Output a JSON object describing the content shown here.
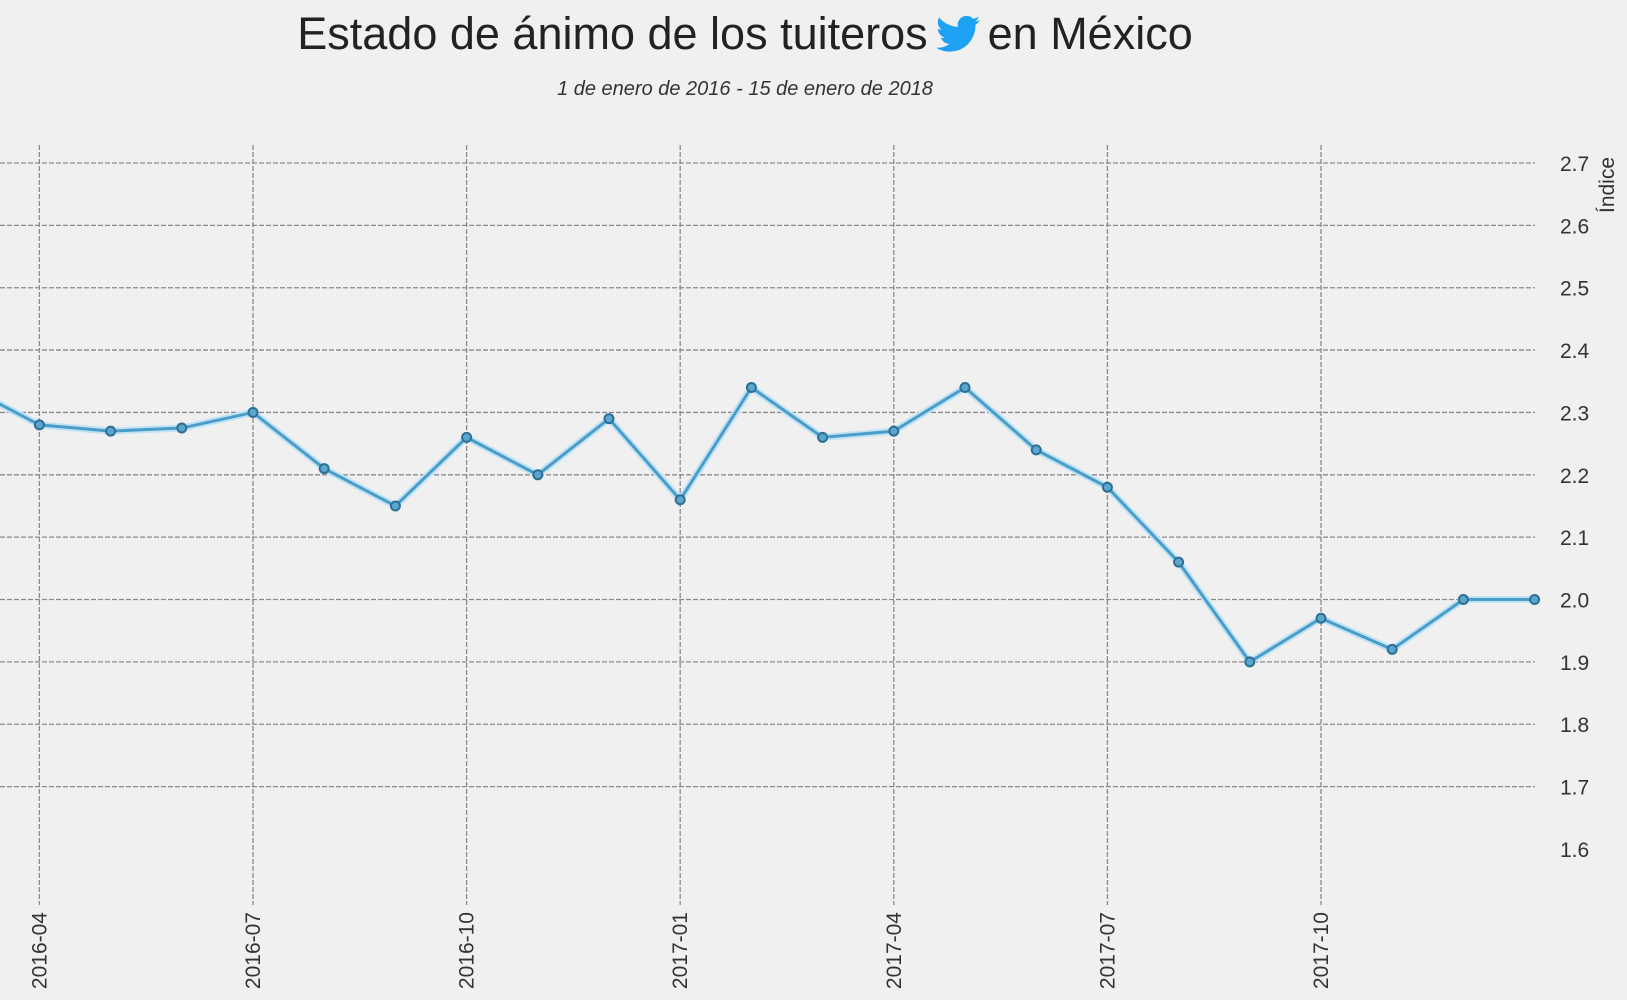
{
  "chart_data": {
    "type": "line",
    "title_part1": "Estado de ánimo de los tuiteros",
    "title_icon": "twitter-bird-icon",
    "title_part2": "en México",
    "subtitle": "1 de enero de 2016 - 15 de enero de 2018",
    "ylabel": "Índice",
    "xlabel": "",
    "ylim": [
      1.6,
      2.7
    ],
    "yticks": [
      "1.6",
      "1.7",
      "1.8",
      "1.9",
      "2.0",
      "2.1",
      "2.2",
      "2.3",
      "2.4",
      "2.5",
      "2.6",
      "2.7"
    ],
    "xticks": [
      "2016-04",
      "2016-07",
      "2016-10",
      "2017-01",
      "2017-04",
      "2017-07",
      "2017-10"
    ],
    "grid": true,
    "colors": {
      "line": "#4a9cc9",
      "marker": "#2f6f94",
      "grid": "#8a8a8a",
      "twitter": "#1da1f2"
    },
    "x": [
      "2016-03",
      "2016-04",
      "2016-05",
      "2016-06",
      "2016-07",
      "2016-08",
      "2016-09",
      "2016-10",
      "2016-11",
      "2016-12",
      "2017-01",
      "2017-02",
      "2017-03",
      "2017-04",
      "2017-05",
      "2017-06",
      "2017-07",
      "2017-08",
      "2017-09",
      "2017-10",
      "2017-11",
      "2017-12",
      "2018-01"
    ],
    "values": [
      2.34,
      2.28,
      2.27,
      2.275,
      2.3,
      2.21,
      2.15,
      2.26,
      2.2,
      2.29,
      2.16,
      2.34,
      2.26,
      2.27,
      2.34,
      2.24,
      2.18,
      2.06,
      1.9,
      1.97,
      1.92,
      2.0,
      2.0
    ]
  }
}
